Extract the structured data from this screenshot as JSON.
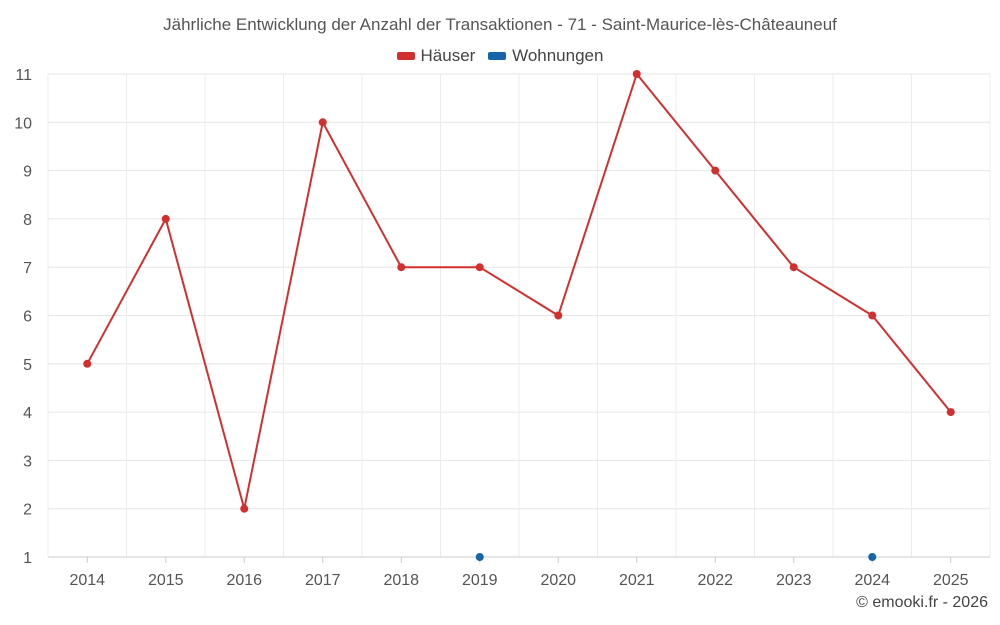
{
  "chart_data": {
    "type": "line",
    "title": "Jährliche Entwicklung der Anzahl der Transaktionen - 71 - Saint-Maurice-lès-Châteauneuf",
    "xlabel": "",
    "ylabel": "",
    "categories": [
      "2014",
      "2015",
      "2016",
      "2017",
      "2018",
      "2019",
      "2020",
      "2021",
      "2022",
      "2023",
      "2024",
      "2025"
    ],
    "ylim": [
      1,
      11
    ],
    "yticks": [
      1,
      2,
      3,
      4,
      5,
      6,
      7,
      8,
      9,
      10,
      11
    ],
    "grid": true,
    "legend_position": "top",
    "series": [
      {
        "name": "Häuser",
        "color": "#d32f2f",
        "values": [
          5,
          8,
          2,
          10,
          7,
          7,
          6,
          11,
          9,
          7,
          6,
          4
        ]
      },
      {
        "name": "Wohnungen",
        "color": "#1565a8",
        "values": [
          null,
          null,
          null,
          null,
          null,
          1,
          null,
          null,
          null,
          null,
          1,
          null
        ]
      }
    ]
  },
  "credit": "© emooki.fr - 2026"
}
